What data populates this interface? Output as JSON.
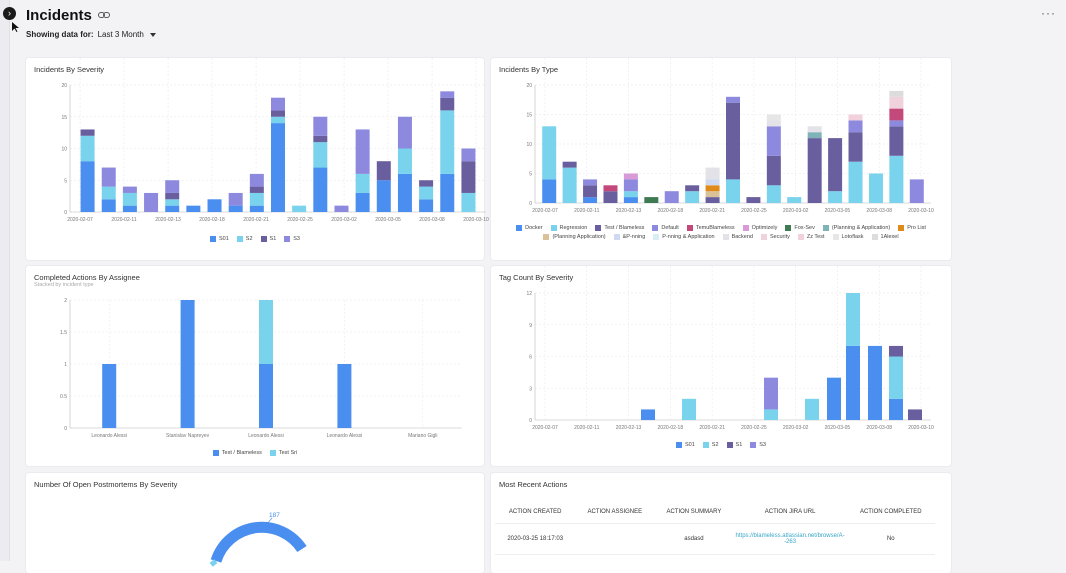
{
  "page": {
    "title": "Incidents"
  },
  "filter": {
    "label": "Showing data for:",
    "value": "Last 3 Month"
  },
  "menu": {
    "more": "···"
  },
  "colors": {
    "S01": "#4a8ff0",
    "S2": "#79d3ec",
    "S1": "#6a5f9e",
    "S3": "#8c89de",
    "grid": "#e6e6ea",
    "axis": "#999999"
  },
  "cards": {
    "severity": {
      "title": "Incidents By Severity"
    },
    "type": {
      "title": "Incidents By Type"
    },
    "assignee": {
      "title": "Completed Actions By Assignee",
      "subtitle": "Stacked by incident type"
    },
    "tagcount": {
      "title": "Tag Count By Severity"
    },
    "postmortems": {
      "title": "Number Of Open Postmortems By Severity",
      "value": "187"
    },
    "actions": {
      "title": "Most Recent Actions",
      "columns": [
        "ACTION CREATED",
        "ACTION ASSIGNEE",
        "ACTION SUMMARY",
        "ACTION JIRA URL",
        "ACTION COMPLETED"
      ],
      "rows": [
        {
          "created": "2020-03-25 18:17:03",
          "assignee": "",
          "summary": "asdasd",
          "url": "https://blameless.atlassian.net/browse/A--263",
          "completed": "No"
        }
      ]
    }
  },
  "chart_data": [
    {
      "id": "severity",
      "type": "bar",
      "stacked": true,
      "ylim": [
        0,
        20
      ],
      "yticks": [
        0,
        5,
        10,
        15,
        20
      ],
      "xticks": [
        "2020-02-07",
        "2020-02-11",
        "2020-02-13",
        "2020-02-18",
        "2020-02-21",
        "2020-02-25",
        "2020-03-02",
        "2020-03-05",
        "2020-03-08",
        "2020-03-10"
      ],
      "series": [
        {
          "name": "S01",
          "color": "#4a8ff0",
          "values": [
            8,
            2,
            1,
            0,
            1,
            1,
            2,
            1,
            1,
            14,
            0,
            7,
            0,
            3,
            5,
            6,
            2,
            6,
            0
          ]
        },
        {
          "name": "S2",
          "color": "#79d3ec",
          "values": [
            4,
            2,
            2,
            0,
            1,
            0,
            0,
            0,
            2,
            1,
            1,
            4,
            0,
            3,
            0,
            4,
            2,
            10,
            3
          ]
        },
        {
          "name": "S1",
          "color": "#6a5f9e",
          "values": [
            1,
            0,
            0,
            0,
            1,
            0,
            0,
            0,
            1,
            1,
            0,
            1,
            0,
            0,
            3,
            0,
            1,
            2,
            5
          ]
        },
        {
          "name": "S3",
          "color": "#8c89de",
          "values": [
            0,
            3,
            1,
            3,
            2,
            0,
            0,
            2,
            2,
            2,
            0,
            3,
            1,
            7,
            0,
            5,
            0,
            1,
            2
          ]
        }
      ]
    },
    {
      "id": "type",
      "type": "bar",
      "stacked": true,
      "ylim": [
        0,
        20
      ],
      "yticks": [
        0,
        5,
        10,
        15,
        20
      ],
      "xticks": [
        "2020-02-07",
        "2020-02-11",
        "2020-02-13",
        "2020-02-18",
        "2020-02-21",
        "2020-02-25",
        "2020-03-02",
        "2020-03-05",
        "2020-03-08",
        "2020-03-10"
      ],
      "legend": [
        {
          "name": "Docker",
          "color": "#4a8ff0"
        },
        {
          "name": "Regression",
          "color": "#79d3ec"
        },
        {
          "name": "Test / Blameless",
          "color": "#6a5f9e"
        },
        {
          "name": "Default",
          "color": "#8c89de"
        },
        {
          "name": "TemuBlameless",
          "color": "#c2497a"
        },
        {
          "name": "Optimizely",
          "color": "#d99ad8"
        },
        {
          "name": "Fox-Sev",
          "color": "#3e7a52"
        },
        {
          "name": "(Planning & Application)",
          "color": "#7fb3b8"
        },
        {
          "name": "Pro List",
          "color": "#e08a1c"
        },
        {
          "name": "(Planning Application)",
          "color": "#d9c29a"
        },
        {
          "name": "&P-nning",
          "color": "#cfd9f2"
        },
        {
          "name": "P-nning & Application",
          "color": "#d8eef4"
        },
        {
          "name": "Backend",
          "color": "#e2e2e8"
        },
        {
          "name": "Security",
          "color": "#f0d2dc"
        },
        {
          "name": "Zz Test",
          "color": "#f2d0dc"
        },
        {
          "name": "Lotoflask",
          "color": "#e6e6e6"
        },
        {
          "name": "1Alexel",
          "color": "#dcdcdc"
        }
      ],
      "bars": [
        [
          [
            4,
            "#4a8ff0"
          ],
          [
            9,
            "#79d3ec"
          ]
        ],
        [
          [
            6,
            "#79d3ec"
          ],
          [
            1,
            "#6a5f9e"
          ]
        ],
        [
          [
            1,
            "#4a8ff0"
          ],
          [
            2,
            "#6a5f9e"
          ],
          [
            1,
            "#8c89de"
          ]
        ],
        [
          [
            2,
            "#6a5f9e"
          ],
          [
            1,
            "#c2497a"
          ]
        ],
        [
          [
            1,
            "#4a8ff0"
          ],
          [
            1,
            "#79d3ec"
          ],
          [
            2,
            "#8c89de"
          ],
          [
            1,
            "#d99ad8"
          ]
        ],
        [
          [
            1,
            "#3e7a52"
          ]
        ],
        [
          [
            2,
            "#8c89de"
          ]
        ],
        [
          [
            2,
            "#79d3ec"
          ],
          [
            1,
            "#6a5f9e"
          ]
        ],
        [
          [
            1,
            "#6a5f9e"
          ],
          [
            1,
            "#d9c29a"
          ],
          [
            1,
            "#e08a1c"
          ],
          [
            1,
            "#cfd9f2"
          ],
          [
            2,
            "#e2e2e8"
          ]
        ],
        [
          [
            4,
            "#79d3ec"
          ],
          [
            13,
            "#6a5f9e"
          ],
          [
            1,
            "#8c89de"
          ]
        ],
        [
          [
            1,
            "#6a5f9e"
          ]
        ],
        [
          [
            3,
            "#79d3ec"
          ],
          [
            5,
            "#6a5f9e"
          ],
          [
            5,
            "#8c89de"
          ],
          [
            1,
            "#e2e2e8"
          ],
          [
            1,
            "#e6e6e6"
          ]
        ],
        [
          [
            1,
            "#79d3ec"
          ]
        ],
        [
          [
            11,
            "#6a5f9e"
          ],
          [
            1,
            "#7fb3b8"
          ],
          [
            1,
            "#e2e2e8"
          ]
        ],
        [
          [
            2,
            "#79d3ec"
          ],
          [
            9,
            "#6a5f9e"
          ]
        ],
        [
          [
            7,
            "#79d3ec"
          ],
          [
            5,
            "#6a5f9e"
          ],
          [
            2,
            "#8c89de"
          ],
          [
            1,
            "#f2d0dc"
          ]
        ],
        [
          [
            5,
            "#79d3ec"
          ]
        ],
        [
          [
            8,
            "#79d3ec"
          ],
          [
            5,
            "#6a5f9e"
          ],
          [
            1,
            "#8c89de"
          ],
          [
            2,
            "#c2497a"
          ],
          [
            2,
            "#f0d2dc"
          ],
          [
            1,
            "#dcdcdc"
          ]
        ],
        [
          [
            4,
            "#8c89de"
          ]
        ]
      ]
    },
    {
      "id": "assignee",
      "type": "bar",
      "stacked": true,
      "ylim": [
        0,
        2
      ],
      "yticks": [
        0,
        0.5,
        1,
        1.5,
        2
      ],
      "categories": [
        "Leonardo Alessi",
        "Stanislav Napreyev",
        "Leonardo Alessi",
        "Leonardo Alessi",
        "Mariano Gigli"
      ],
      "series": [
        {
          "name": "Test / Blameless",
          "color": "#4a8ff0",
          "values": [
            1,
            2,
            1,
            1,
            0
          ]
        },
        {
          "name": "Test Sri",
          "color": "#79d3ec",
          "values": [
            0,
            0,
            1,
            0,
            0
          ]
        }
      ]
    },
    {
      "id": "tagcount",
      "type": "bar",
      "stacked": true,
      "ylim": [
        0,
        12
      ],
      "yticks": [
        0,
        3,
        6,
        9,
        12
      ],
      "xticks": [
        "2020-02-07",
        "2020-02-11",
        "2020-02-13",
        "2020-02-18",
        "2020-02-21",
        "2020-02-25",
        "2020-03-02",
        "2020-03-05",
        "2020-03-08",
        "2020-03-10"
      ],
      "series": [
        {
          "name": "S01",
          "color": "#4a8ff0",
          "values": [
            1,
            0,
            0,
            0,
            0,
            0,
            4,
            7,
            7,
            2,
            0
          ]
        },
        {
          "name": "S2",
          "color": "#79d3ec",
          "values": [
            0,
            2,
            1,
            2,
            0,
            0,
            0,
            5,
            0,
            4,
            0
          ]
        },
        {
          "name": "S1",
          "color": "#6a5f9e",
          "values": [
            0,
            0,
            0,
            0,
            0,
            0,
            0,
            0,
            0,
            1,
            1
          ]
        },
        {
          "name": "S3",
          "color": "#8c89de",
          "values": [
            0,
            0,
            3,
            0,
            0,
            0,
            0,
            0,
            0,
            0,
            0
          ]
        }
      ]
    }
  ]
}
